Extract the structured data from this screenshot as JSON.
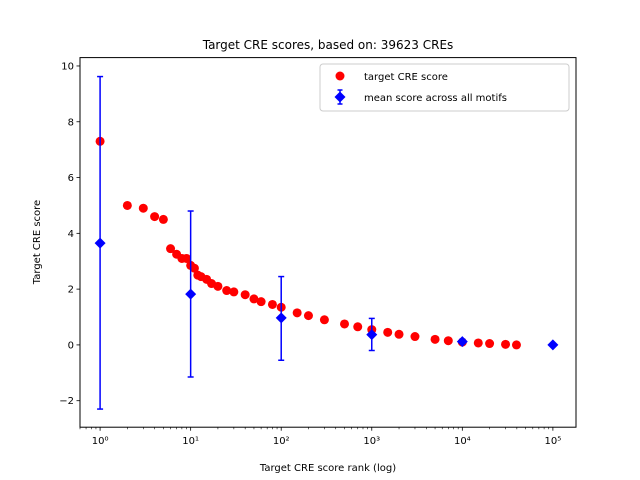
{
  "chart_data": {
    "type": "scatter",
    "title": "Target CRE scores, based on: 39623 CREs",
    "xlabel": "Target CRE score rank (log)",
    "ylabel": "Target CRE score",
    "x_scale": "log",
    "xlim": [
      0.6,
      180000
    ],
    "ylim": [
      -2.95,
      10.3
    ],
    "x_ticks": [
      {
        "value": 1,
        "label": "10⁰"
      },
      {
        "value": 10,
        "label": "10¹"
      },
      {
        "value": 100,
        "label": "10²"
      },
      {
        "value": 1000,
        "label": "10³"
      },
      {
        "value": 10000,
        "label": "10⁴"
      },
      {
        "value": 100000,
        "label": "10⁵"
      }
    ],
    "y_ticks": [
      -2,
      0,
      2,
      4,
      6,
      8,
      10
    ],
    "grid": false,
    "legend_position": "top-right",
    "series": [
      {
        "name": "target CRE score",
        "marker": "circle",
        "color": "#ff0000",
        "x": [
          1,
          2,
          3,
          4,
          5,
          6,
          7,
          8,
          9,
          10,
          11,
          12,
          13,
          15,
          17,
          20,
          25,
          30,
          40,
          50,
          60,
          80,
          100,
          150,
          200,
          300,
          500,
          700,
          1000,
          1500,
          2000,
          3000,
          5000,
          7000,
          10000,
          15000,
          20000,
          30000,
          39623
        ],
        "y": [
          7.3,
          5.0,
          4.9,
          4.6,
          4.5,
          3.45,
          3.25,
          3.1,
          3.1,
          2.85,
          2.75,
          2.5,
          2.45,
          2.35,
          2.2,
          2.1,
          1.95,
          1.9,
          1.8,
          1.65,
          1.55,
          1.45,
          1.35,
          1.15,
          1.05,
          0.9,
          0.75,
          0.65,
          0.55,
          0.45,
          0.38,
          0.3,
          0.2,
          0.15,
          0.1,
          0.07,
          0.05,
          0.02,
          0.0
        ]
      },
      {
        "name": "mean score across all motifs",
        "marker": "diamond",
        "color": "#0000ff",
        "x": [
          1,
          10,
          100,
          1000,
          10000,
          100000
        ],
        "y": [
          3.65,
          1.82,
          0.97,
          0.37,
          0.12,
          0.0
        ],
        "yerr_low": [
          -2.3,
          -1.15,
          -0.55,
          -0.2,
          0.05,
          0.0
        ],
        "yerr_high": [
          9.62,
          4.8,
          2.45,
          0.95,
          0.2,
          0.0
        ]
      }
    ]
  }
}
